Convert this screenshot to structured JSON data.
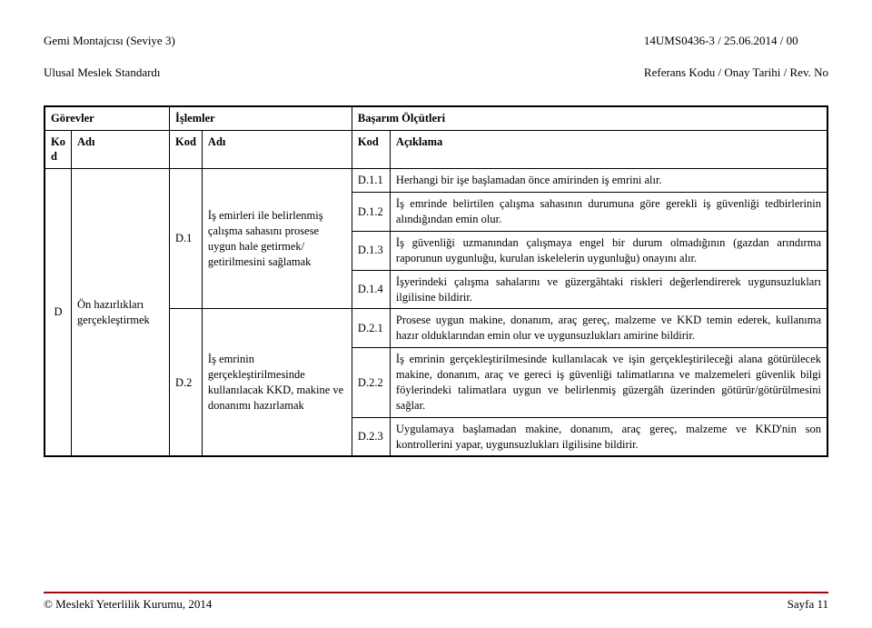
{
  "header": {
    "left_line1": "Gemi Montajcısı (Seviye 3)",
    "left_line2": "Ulusal Meslek Standardı",
    "right_line1": "14UMS0436-3 / 25.06.2014  / 00",
    "right_line2": "Referans Kodu / Onay Tarihi / Rev. No"
  },
  "section_headers": {
    "gorevler": "Görevler",
    "islemler": "İşlemler",
    "basarim": "Başarım Ölçütleri",
    "kod": "Kod",
    "adi": "Adı",
    "aciklama": "Açıklama",
    "kod_short": "Ko\nd"
  },
  "main_row": {
    "kod": "D",
    "adi": "Ön hazırlıkları gerçekleştirmek"
  },
  "ops": [
    {
      "kod": "D.1",
      "adi": "İş emirleri ile belirlenmiş çalışma sahasını prosese uygun hale getirmek/ getirilmesini sağlamak"
    },
    {
      "kod": "D.2",
      "adi": "İş emrinin gerçekleştirilmesinde kullanılacak KKD, makine ve donanımı hazırlamak"
    }
  ],
  "criteria": [
    {
      "kod": "D.1.1",
      "text": "Herhangi bir işe başlamadan önce amirinden iş emrini alır."
    },
    {
      "kod": "D.1.2",
      "text": "İş emrinde belirtilen çalışma sahasının durumuna göre gerekli iş güvenliği tedbirlerinin alındığından emin olur."
    },
    {
      "kod": "D.1.3",
      "text": "İş güvenliği uzmanından çalışmaya engel bir durum olmadığının (gazdan arındırma raporunun uygunluğu, kurulan iskelelerin uygunluğu) onayını alır."
    },
    {
      "kod": "D.1.4",
      "text": "İşyerindeki çalışma sahalarını ve güzergâhtaki riskleri değerlendirerek uygunsuzlukları ilgilisine bildirir."
    },
    {
      "kod": "D.2.1",
      "text": "Prosese uygun makine, donanım, araç gereç, malzeme ve KKD temin ederek, kullanıma hazır olduklarından emin olur ve uygunsuzlukları amirine bildirir."
    },
    {
      "kod": "D.2.2",
      "text": "İş emrinin gerçekleştirilmesinde kullanılacak ve işin gerçekleştirileceği alana götürülecek makine, donanım, araç ve gereci iş güvenliği talimatlarına ve malzemeleri güvenlik bilgi föylerindeki talimatlara uygun ve belirlenmiş güzergâh üzerinden götürür/götürülmesini sağlar."
    },
    {
      "kod": "D.2.3",
      "text": "Uygulamaya başlamadan makine, donanım, araç gereç, malzeme ve KKD'nin son kontrollerini yapar, uygunsuzlukları ilgilisine bildirir."
    }
  ],
  "footer": {
    "left": "© Meslekî Yeterlilik Kurumu, 2014",
    "right": "Sayfa 11"
  }
}
